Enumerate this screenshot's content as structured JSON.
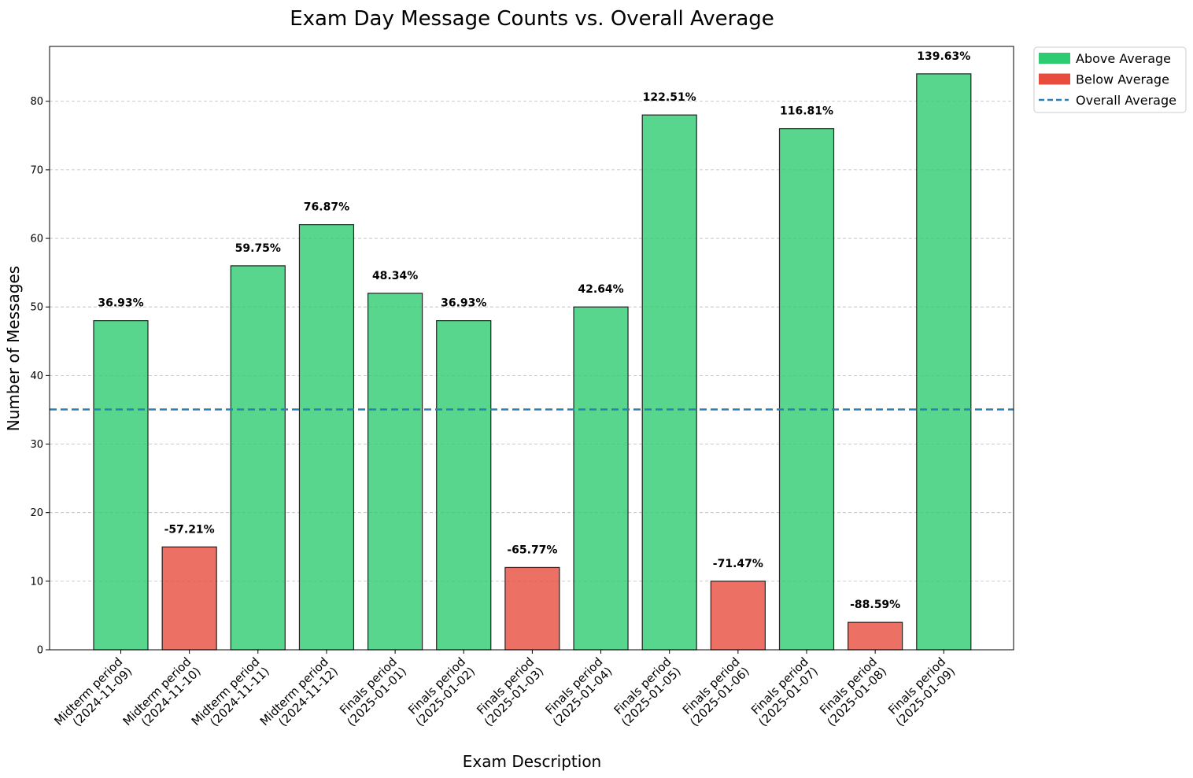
{
  "chart_data": {
    "type": "bar",
    "title": "Exam Day Message Counts vs. Overall Average",
    "xlabel": "Exam Description",
    "ylabel": "Number of Messages",
    "ylim": [
      0,
      88
    ],
    "yticks": [
      0,
      10,
      20,
      30,
      40,
      50,
      60,
      70,
      80
    ],
    "grid": "horizontal dashed",
    "legend_placement": "outside top-right",
    "average": 35.05,
    "colors": {
      "above": "#2ecc71",
      "below": "#e74c3c",
      "average_line": "#2980b9"
    },
    "legend": [
      {
        "key": "above",
        "label": "Above Average"
      },
      {
        "key": "below",
        "label": "Below Average"
      },
      {
        "key": "average_line",
        "label": "Overall Average"
      }
    ],
    "categories": [
      {
        "line1": "Midterm period",
        "line2": "(2024-11-09)"
      },
      {
        "line1": "Midterm period",
        "line2": "(2024-11-10)"
      },
      {
        "line1": "Midterm period",
        "line2": "(2024-11-11)"
      },
      {
        "line1": "Midterm period",
        "line2": "(2024-11-12)"
      },
      {
        "line1": "Finals period",
        "line2": "(2025-01-01)"
      },
      {
        "line1": "Finals period",
        "line2": "(2025-01-02)"
      },
      {
        "line1": "Finals period",
        "line2": "(2025-01-03)"
      },
      {
        "line1": "Finals period",
        "line2": "(2025-01-04)"
      },
      {
        "line1": "Finals period",
        "line2": "(2025-01-05)"
      },
      {
        "line1": "Finals period",
        "line2": "(2025-01-06)"
      },
      {
        "line1": "Finals period",
        "line2": "(2025-01-07)"
      },
      {
        "line1": "Finals period",
        "line2": "(2025-01-08)"
      },
      {
        "line1": "Finals period",
        "line2": "(2025-01-09)"
      }
    ],
    "values": [
      48,
      15,
      56,
      62,
      52,
      48,
      12,
      50,
      78,
      10,
      76,
      4,
      84
    ],
    "labels": [
      "36.93%",
      "-57.21%",
      "59.75%",
      "76.87%",
      "48.34%",
      "36.93%",
      "-65.77%",
      "42.64%",
      "122.51%",
      "-71.47%",
      "116.81%",
      "-88.59%",
      "139.63%"
    ]
  }
}
